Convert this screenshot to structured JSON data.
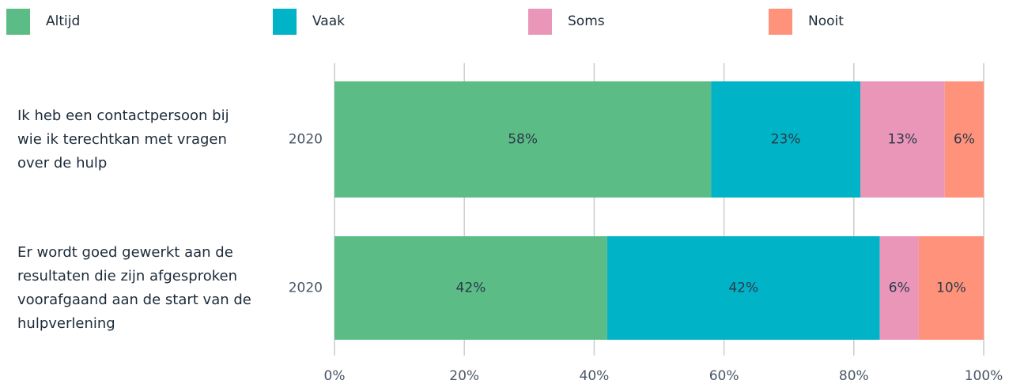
{
  "chart_data": {
    "type": "stacked-bar-horizontal",
    "categories": [
      "Ik heb een contactpersoon bij wie ik terechtkan met vragen over de hulp",
      "Er wordt goed gewerkt aan de resultaten die zijn afgesproken voorafgaand aan de start van de hulpverlening"
    ],
    "subcategories": [
      "2020",
      "2020"
    ],
    "series": [
      {
        "name": "Altijd",
        "color": "#5bbd85",
        "values": [
          58,
          42
        ],
        "value_labels": [
          "58%",
          "42%"
        ]
      },
      {
        "name": "Vaak",
        "color": "#00b3c6",
        "values": [
          23,
          42
        ],
        "value_labels": [
          "23%",
          "42%"
        ]
      },
      {
        "name": "Soms",
        "color": "#ea96b9",
        "values": [
          13,
          6
        ],
        "value_labels": [
          "13%",
          "6%"
        ]
      },
      {
        "name": "Nooit",
        "color": "#ff927a",
        "values": [
          6,
          10
        ],
        "value_labels": [
          "6%",
          "10%"
        ]
      }
    ],
    "xlim": [
      0,
      100
    ],
    "xticks": [
      {
        "value": 0,
        "label": "0%"
      },
      {
        "value": 20,
        "label": "20%"
      },
      {
        "value": 40,
        "label": "40%"
      },
      {
        "value": 60,
        "label": "60%"
      },
      {
        "value": 80,
        "label": "80%"
      },
      {
        "value": 100,
        "label": "100%"
      }
    ],
    "grid": true,
    "legend": "top"
  }
}
